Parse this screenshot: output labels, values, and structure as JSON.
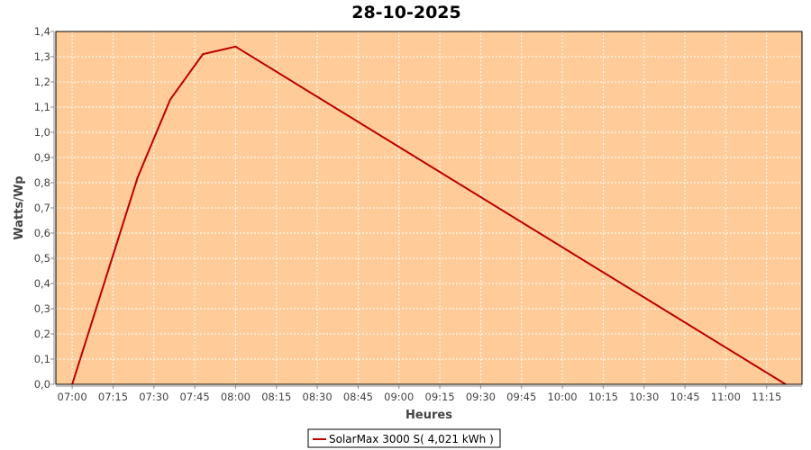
{
  "chart_data": {
    "type": "line",
    "title": "28-10-2025",
    "xlabel": "Heures",
    "ylabel": "Watts/Wp",
    "xlim": [
      "06:54",
      "11:28"
    ],
    "ylim": [
      0,
      1.4
    ],
    "grid": true,
    "legend_placement": "bottom",
    "plot_background": "#FFCC99",
    "x_ticks": [
      "07:00",
      "07:15",
      "07:30",
      "07:45",
      "08:00",
      "08:15",
      "08:30",
      "08:45",
      "09:00",
      "09:15",
      "09:30",
      "09:45",
      "10:00",
      "10:15",
      "10:30",
      "10:45",
      "11:00",
      "11:15"
    ],
    "y_ticks": [
      "0,0",
      "0,1",
      "0,2",
      "0,3",
      "0,4",
      "0,5",
      "0,6",
      "0,7",
      "0,8",
      "0,9",
      "1,0",
      "1,1",
      "1,2",
      "1,3",
      "1,4"
    ],
    "series": [
      {
        "name": "SolarMax 3000 S( 4,021 kWh )",
        "color": "#BB0000",
        "x": [
          "07:00",
          "07:24",
          "07:36",
          "07:48",
          "08:00",
          "11:22"
        ],
        "y": [
          0.0,
          0.82,
          1.13,
          1.31,
          1.34,
          0.0
        ]
      }
    ]
  }
}
